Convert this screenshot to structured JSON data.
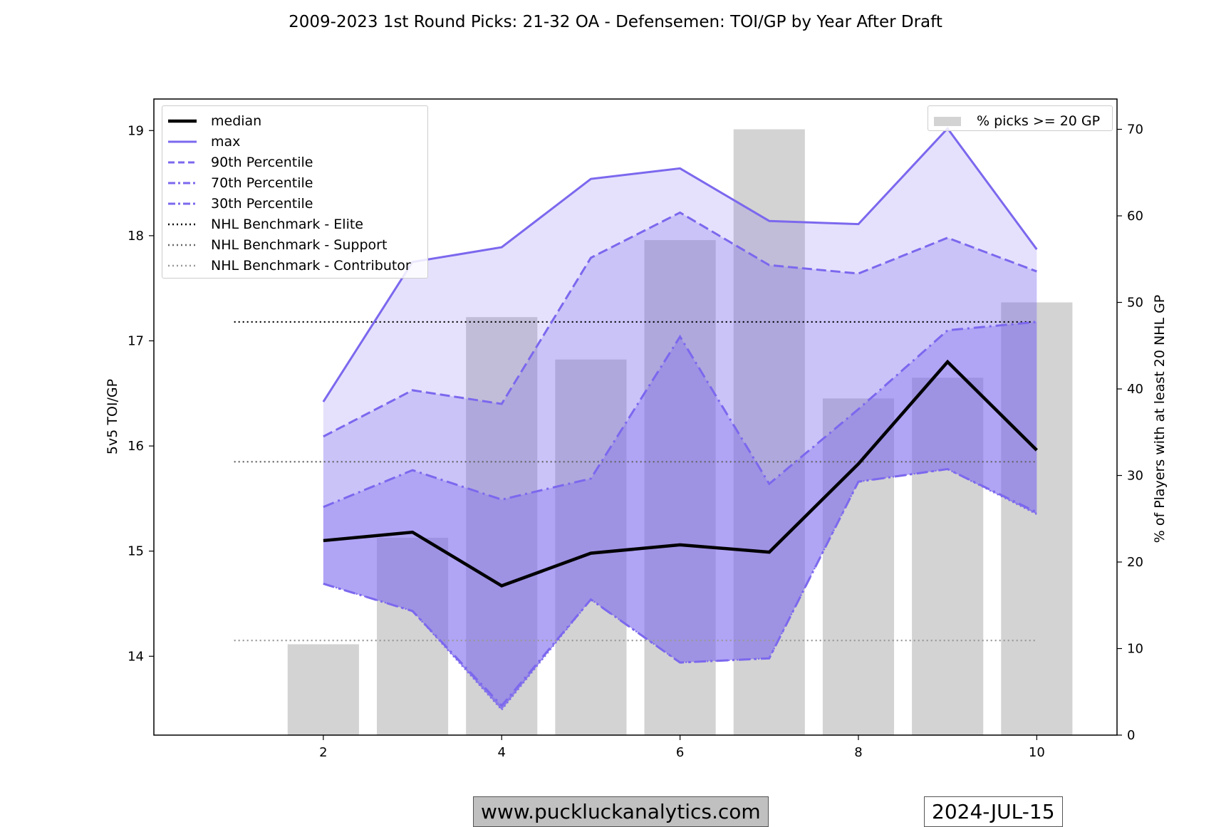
{
  "chart_data": {
    "type": "area",
    "title": "2009-2023 1st Round Picks: 21-32 OA - Defensemen: TOI/GP by Year After Draft",
    "ylabel": "5v5 TOI/GP",
    "y2label": "% of Players with at least 20 NHL GP",
    "xlabel": "",
    "xlim": [
      0.1,
      10.9
    ],
    "ylim": [
      13.25,
      19.3
    ],
    "y2lim": [
      0,
      73.5
    ],
    "x_ticks": [
      2,
      4,
      6,
      8,
      10
    ],
    "y_ticks": [
      14,
      15,
      16,
      17,
      18,
      19
    ],
    "y2_ticks": [
      0,
      10,
      20,
      30,
      40,
      50,
      60,
      70
    ],
    "grid": false,
    "x": [
      2,
      3,
      4,
      5,
      6,
      7,
      8,
      9,
      10
    ],
    "series": [
      {
        "name": "median",
        "style": "solid",
        "values": [
          15.1,
          15.18,
          14.67,
          14.98,
          15.06,
          14.99,
          15.83,
          16.8,
          15.96
        ]
      },
      {
        "name": "max",
        "style": "solid",
        "values": [
          16.42,
          17.75,
          17.89,
          18.54,
          18.64,
          18.14,
          18.11,
          19.02,
          17.87
        ]
      },
      {
        "name": "90th Percentile",
        "style": "dashed",
        "values": [
          16.09,
          16.53,
          16.4,
          17.79,
          18.22,
          17.72,
          17.64,
          17.98,
          17.66
        ]
      },
      {
        "name": "70th Percentile",
        "style": "dashdot",
        "values": [
          15.42,
          15.77,
          15.49,
          15.69,
          17.04,
          15.64,
          16.35,
          17.1,
          17.18
        ]
      },
      {
        "name": "30th Percentile",
        "style": "dashdot",
        "values": [
          14.69,
          14.43,
          13.53,
          14.54,
          13.94,
          13.98,
          15.66,
          15.78,
          15.37
        ]
      }
    ],
    "min_values": [
      14.69,
      14.43,
      13.49,
      14.54,
      13.94,
      13.98,
      15.66,
      15.78,
      15.35
    ],
    "benchmarks": [
      {
        "name": "NHL Benchmark - Elite",
        "value": 17.18,
        "color": "#000000"
      },
      {
        "name": "NHL Benchmark - Support",
        "value": 15.85,
        "color": "#666666"
      },
      {
        "name": "NHL Benchmark - Contributor",
        "value": 14.15,
        "color": "#999999"
      }
    ],
    "benchmark_x": [
      1,
      10
    ],
    "bars": {
      "name": "% picks >= 20 GP",
      "color": "#d3d3d3",
      "values": [
        10.5,
        22.8,
        48.3,
        43.4,
        57.2,
        70.0,
        38.9,
        41.3,
        50.0
      ]
    },
    "colors": {
      "line": "#7b68ee",
      "median": "#000000",
      "fill": "#7b68ee"
    },
    "legend_placement": [
      "upper left",
      "upper right"
    ]
  },
  "footer": {
    "website": "www.puckluckanalytics.com",
    "date": "2024-JUL-15"
  }
}
